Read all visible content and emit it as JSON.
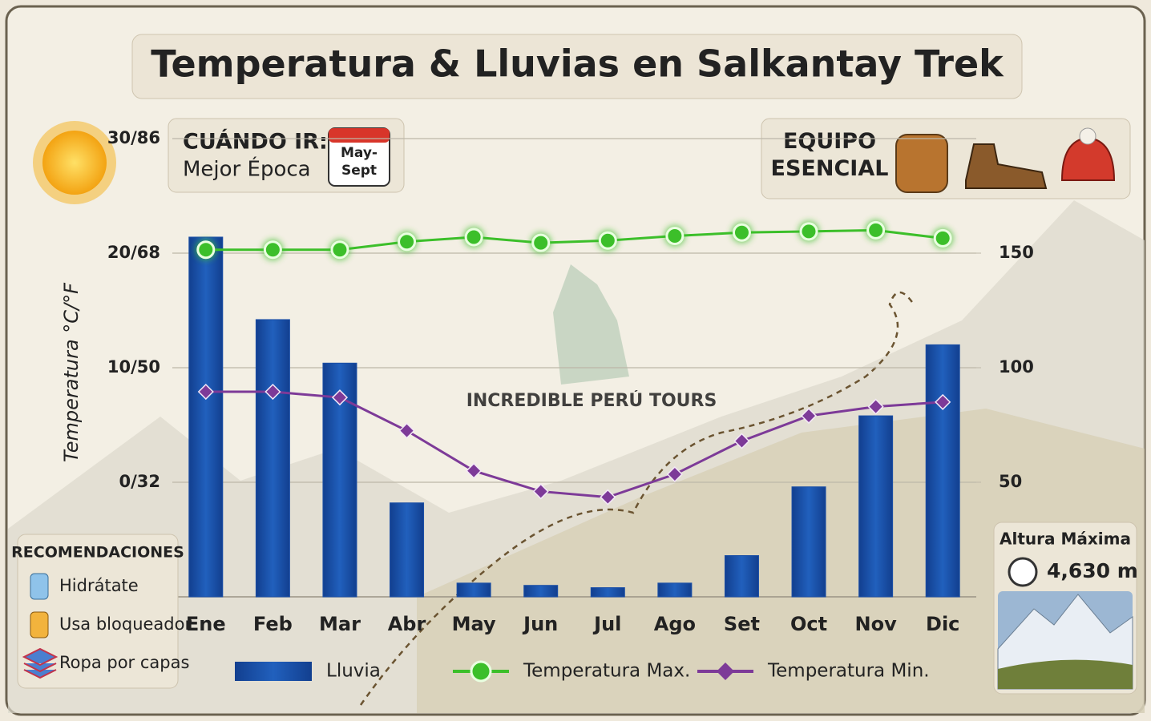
{
  "chart_data": {
    "type": "combo",
    "title": "Temperatura & Lluvias en Salkantay Trek",
    "y_label": "Temperatura °C/°F",
    "categories": [
      "Ene",
      "Feb",
      "Mar",
      "Abr",
      "May",
      "Jun",
      "Jul",
      "Ago",
      "Set",
      "Oct",
      "Nov",
      "Dic"
    ],
    "series": [
      {
        "name": "Lluvia",
        "type": "bar",
        "axis": "y2",
        "color": "#1b4fa6",
        "values": [
          157,
          121,
          102,
          41,
          6,
          5,
          4,
          6,
          18,
          48,
          79,
          110
        ]
      },
      {
        "name": "Temperatura Max.",
        "type": "line",
        "marker": "circle",
        "color": "#3cbf2a",
        "values": [
          20.3,
          20.3,
          20.3,
          21.0,
          21.4,
          20.9,
          21.1,
          21.5,
          21.8,
          21.9,
          22.0,
          21.3
        ]
      },
      {
        "name": "Temperatura Min.",
        "type": "line",
        "marker": "diamond",
        "color": "#7d3a98",
        "values": [
          7.9,
          7.9,
          7.4,
          4.5,
          1.0,
          -0.8,
          -1.3,
          0.7,
          3.6,
          5.8,
          6.6,
          7.0
        ]
      }
    ],
    "ylim": [
      -10,
      30
    ],
    "yticks": [
      {
        "value": 0,
        "label": "0/32"
      },
      {
        "value": 10,
        "label": "10/50"
      },
      {
        "value": 20,
        "label": "20/68"
      },
      {
        "value": 30,
        "label": "30/86"
      }
    ],
    "y2lim": [
      0,
      200
    ],
    "y2ticks": [
      50,
      100,
      150
    ],
    "grid": true
  },
  "when_to_go": {
    "title": "CUÁNDO IR:",
    "subtitle": "Mejor Época",
    "badge": "May-Sept"
  },
  "gear": {
    "title": "EQUIPO ESENCIAL"
  },
  "recommendations": {
    "title": "RECOMENDACIONES",
    "items": [
      "Hidrátate",
      "Usa bloqueador",
      "Ropa por capas"
    ]
  },
  "altitude": {
    "title": "Altura Máxima",
    "value": "4,630 m"
  },
  "watermark": "INCREDIBLE PERÚ TOURS"
}
